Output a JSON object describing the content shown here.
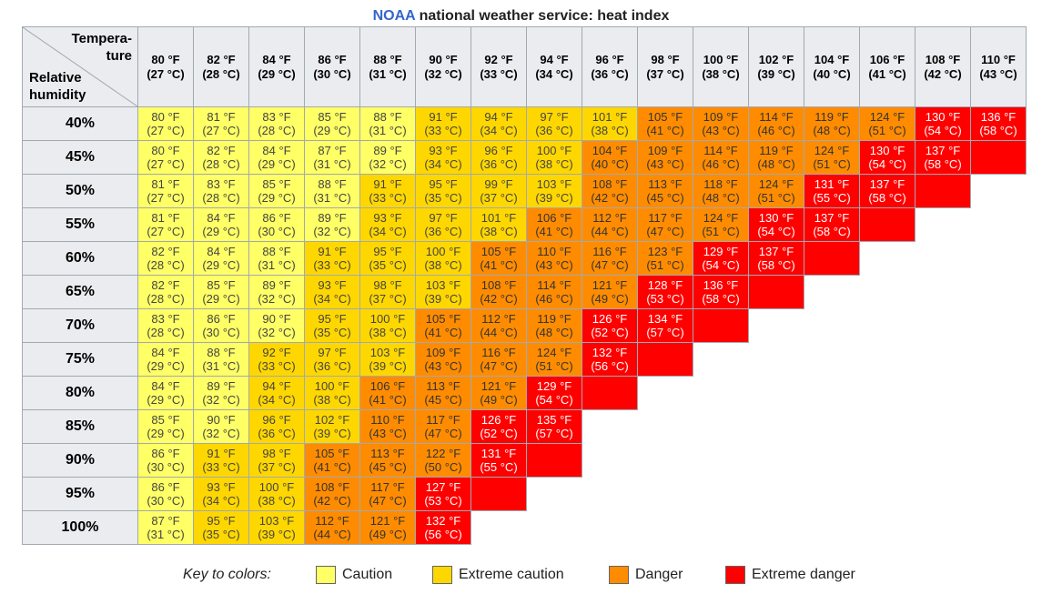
{
  "title": {
    "brand": "NOAA",
    "rest": "national weather service: heat index"
  },
  "corner": {
    "temp_line1": "Tempera-",
    "temp_line2": "ture",
    "hum_line1": "Relative",
    "hum_line2": "humidity"
  },
  "colors": {
    "header_bg": "#eaecf0",
    "caution": "#ffff66",
    "extreme_caution": "#ffd700",
    "danger": "#ff8c00",
    "extreme_danger": "#ff0000"
  },
  "temperatures": [
    {
      "f": "80 °F",
      "c": "(27 °C)"
    },
    {
      "f": "82 °F",
      "c": "(28 °C)"
    },
    {
      "f": "84 °F",
      "c": "(29 °C)"
    },
    {
      "f": "86 °F",
      "c": "(30 °C)"
    },
    {
      "f": "88 °F",
      "c": "(31 °C)"
    },
    {
      "f": "90 °F",
      "c": "(32 °C)"
    },
    {
      "f": "92 °F",
      "c": "(33 °C)"
    },
    {
      "f": "94 °F",
      "c": "(34 °C)"
    },
    {
      "f": "96 °F",
      "c": "(36 °C)"
    },
    {
      "f": "98 °F",
      "c": "(37 °C)"
    },
    {
      "f": "100 °F",
      "c": "(38 °C)"
    },
    {
      "f": "102 °F",
      "c": "(39 °C)"
    },
    {
      "f": "104 °F",
      "c": "(40 °C)"
    },
    {
      "f": "106 °F",
      "c": "(41 °C)"
    },
    {
      "f": "108 °F",
      "c": "(42 °C)"
    },
    {
      "f": "110 °F",
      "c": "(43 °C)"
    }
  ],
  "rows": [
    {
      "humidity": "40%",
      "cells": [
        {
          "f": "80 °F",
          "c": "(27 °C)",
          "cat": 0
        },
        {
          "f": "81 °F",
          "c": "(27 °C)",
          "cat": 0
        },
        {
          "f": "83 °F",
          "c": "(28 °C)",
          "cat": 0
        },
        {
          "f": "85 °F",
          "c": "(29 °C)",
          "cat": 0
        },
        {
          "f": "88 °F",
          "c": "(31 °C)",
          "cat": 0
        },
        {
          "f": "91 °F",
          "c": "(33 °C)",
          "cat": 1
        },
        {
          "f": "94 °F",
          "c": "(34 °C)",
          "cat": 1
        },
        {
          "f": "97 °F",
          "c": "(36 °C)",
          "cat": 1
        },
        {
          "f": "101 °F",
          "c": "(38 °C)",
          "cat": 1
        },
        {
          "f": "105 °F",
          "c": "(41 °C)",
          "cat": 2
        },
        {
          "f": "109 °F",
          "c": "(43 °C)",
          "cat": 2
        },
        {
          "f": "114 °F",
          "c": "(46 °C)",
          "cat": 2
        },
        {
          "f": "119 °F",
          "c": "(48 °C)",
          "cat": 2
        },
        {
          "f": "124 °F",
          "c": "(51 °C)",
          "cat": 2
        },
        {
          "f": "130 °F",
          "c": "(54 °C)",
          "cat": 3
        },
        {
          "f": "136 °F",
          "c": "(58 °C)",
          "cat": 3
        }
      ]
    },
    {
      "humidity": "45%",
      "cells": [
        {
          "f": "80 °F",
          "c": "(27 °C)",
          "cat": 0
        },
        {
          "f": "82 °F",
          "c": "(28 °C)",
          "cat": 0
        },
        {
          "f": "84 °F",
          "c": "(29 °C)",
          "cat": 0
        },
        {
          "f": "87 °F",
          "c": "(31 °C)",
          "cat": 0
        },
        {
          "f": "89 °F",
          "c": "(32 °C)",
          "cat": 0
        },
        {
          "f": "93 °F",
          "c": "(34 °C)",
          "cat": 1
        },
        {
          "f": "96 °F",
          "c": "(36 °C)",
          "cat": 1
        },
        {
          "f": "100 °F",
          "c": "(38 °C)",
          "cat": 1
        },
        {
          "f": "104 °F",
          "c": "(40 °C)",
          "cat": 2
        },
        {
          "f": "109 °F",
          "c": "(43 °C)",
          "cat": 2
        },
        {
          "f": "114 °F",
          "c": "(46 °C)",
          "cat": 2
        },
        {
          "f": "119 °F",
          "c": "(48 °C)",
          "cat": 2
        },
        {
          "f": "124 °F",
          "c": "(51 °C)",
          "cat": 2
        },
        {
          "f": "130 °F",
          "c": "(54 °C)",
          "cat": 3
        },
        {
          "f": "137 °F",
          "c": "(58 °C)",
          "cat": 3
        },
        {
          "f": "",
          "c": "",
          "cat": 3
        }
      ]
    },
    {
      "humidity": "50%",
      "cells": [
        {
          "f": "81 °F",
          "c": "(27 °C)",
          "cat": 0
        },
        {
          "f": "83 °F",
          "c": "(28 °C)",
          "cat": 0
        },
        {
          "f": "85 °F",
          "c": "(29 °C)",
          "cat": 0
        },
        {
          "f": "88 °F",
          "c": "(31 °C)",
          "cat": 0
        },
        {
          "f": "91 °F",
          "c": "(33 °C)",
          "cat": 1
        },
        {
          "f": "95 °F",
          "c": "(35 °C)",
          "cat": 1
        },
        {
          "f": "99 °F",
          "c": "(37 °C)",
          "cat": 1
        },
        {
          "f": "103 °F",
          "c": "(39 °C)",
          "cat": 1
        },
        {
          "f": "108 °F",
          "c": "(42 °C)",
          "cat": 2
        },
        {
          "f": "113 °F",
          "c": "(45 °C)",
          "cat": 2
        },
        {
          "f": "118 °F",
          "c": "(48 °C)",
          "cat": 2
        },
        {
          "f": "124 °F",
          "c": "(51 °C)",
          "cat": 2
        },
        {
          "f": "131 °F",
          "c": "(55 °C)",
          "cat": 3
        },
        {
          "f": "137 °F",
          "c": "(58 °C)",
          "cat": 3
        },
        {
          "f": "",
          "c": "",
          "cat": 3
        }
      ]
    },
    {
      "humidity": "55%",
      "cells": [
        {
          "f": "81 °F",
          "c": "(27 °C)",
          "cat": 0
        },
        {
          "f": "84 °F",
          "c": "(29 °C)",
          "cat": 0
        },
        {
          "f": "86 °F",
          "c": "(30 °C)",
          "cat": 0
        },
        {
          "f": "89 °F",
          "c": "(32 °C)",
          "cat": 0
        },
        {
          "f": "93 °F",
          "c": "(34 °C)",
          "cat": 1
        },
        {
          "f": "97 °F",
          "c": "(36 °C)",
          "cat": 1
        },
        {
          "f": "101 °F",
          "c": "(38 °C)",
          "cat": 1
        },
        {
          "f": "106 °F",
          "c": "(41 °C)",
          "cat": 2
        },
        {
          "f": "112 °F",
          "c": "(44 °C)",
          "cat": 2
        },
        {
          "f": "117 °F",
          "c": "(47 °C)",
          "cat": 2
        },
        {
          "f": "124 °F",
          "c": "(51 °C)",
          "cat": 2
        },
        {
          "f": "130 °F",
          "c": "(54 °C)",
          "cat": 3
        },
        {
          "f": "137 °F",
          "c": "(58 °C)",
          "cat": 3
        },
        {
          "f": "",
          "c": "",
          "cat": 3
        }
      ]
    },
    {
      "humidity": "60%",
      "cells": [
        {
          "f": "82 °F",
          "c": "(28 °C)",
          "cat": 0
        },
        {
          "f": "84 °F",
          "c": "(29 °C)",
          "cat": 0
        },
        {
          "f": "88 °F",
          "c": "(31 °C)",
          "cat": 0
        },
        {
          "f": "91 °F",
          "c": "(33 °C)",
          "cat": 1
        },
        {
          "f": "95 °F",
          "c": "(35 °C)",
          "cat": 1
        },
        {
          "f": "100 °F",
          "c": "(38 °C)",
          "cat": 1
        },
        {
          "f": "105 °F",
          "c": "(41 °C)",
          "cat": 2
        },
        {
          "f": "110 °F",
          "c": "(43 °C)",
          "cat": 2
        },
        {
          "f": "116 °F",
          "c": "(47 °C)",
          "cat": 2
        },
        {
          "f": "123 °F",
          "c": "(51 °C)",
          "cat": 2
        },
        {
          "f": "129 °F",
          "c": "(54 °C)",
          "cat": 3
        },
        {
          "f": "137 °F",
          "c": "(58 °C)",
          "cat": 3
        },
        {
          "f": "",
          "c": "",
          "cat": 3
        }
      ]
    },
    {
      "humidity": "65%",
      "cells": [
        {
          "f": "82 °F",
          "c": "(28 °C)",
          "cat": 0
        },
        {
          "f": "85 °F",
          "c": "(29 °C)",
          "cat": 0
        },
        {
          "f": "89 °F",
          "c": "(32 °C)",
          "cat": 0
        },
        {
          "f": "93 °F",
          "c": "(34 °C)",
          "cat": 1
        },
        {
          "f": "98 °F",
          "c": "(37 °C)",
          "cat": 1
        },
        {
          "f": "103 °F",
          "c": "(39 °C)",
          "cat": 1
        },
        {
          "f": "108 °F",
          "c": "(42 °C)",
          "cat": 2
        },
        {
          "f": "114 °F",
          "c": "(46 °C)",
          "cat": 2
        },
        {
          "f": "121 °F",
          "c": "(49 °C)",
          "cat": 2
        },
        {
          "f": "128 °F",
          "c": "(53 °C)",
          "cat": 3
        },
        {
          "f": "136 °F",
          "c": "(58 °C)",
          "cat": 3
        },
        {
          "f": "",
          "c": "",
          "cat": 3
        }
      ]
    },
    {
      "humidity": "70%",
      "cells": [
        {
          "f": "83 °F",
          "c": "(28 °C)",
          "cat": 0
        },
        {
          "f": "86 °F",
          "c": "(30 °C)",
          "cat": 0
        },
        {
          "f": "90 °F",
          "c": "(32 °C)",
          "cat": 0
        },
        {
          "f": "95 °F",
          "c": "(35 °C)",
          "cat": 1
        },
        {
          "f": "100 °F",
          "c": "(38 °C)",
          "cat": 1
        },
        {
          "f": "105 °F",
          "c": "(41 °C)",
          "cat": 2
        },
        {
          "f": "112 °F",
          "c": "(44 °C)",
          "cat": 2
        },
        {
          "f": "119 °F",
          "c": "(48 °C)",
          "cat": 2
        },
        {
          "f": "126 °F",
          "c": "(52 °C)",
          "cat": 3
        },
        {
          "f": "134 °F",
          "c": "(57 °C)",
          "cat": 3
        },
        {
          "f": "",
          "c": "",
          "cat": 3
        }
      ]
    },
    {
      "humidity": "75%",
      "cells": [
        {
          "f": "84 °F",
          "c": "(29 °C)",
          "cat": 0
        },
        {
          "f": "88 °F",
          "c": "(31 °C)",
          "cat": 0
        },
        {
          "f": "92 °F",
          "c": "(33 °C)",
          "cat": 1
        },
        {
          "f": "97 °F",
          "c": "(36 °C)",
          "cat": 1
        },
        {
          "f": "103 °F",
          "c": "(39 °C)",
          "cat": 1
        },
        {
          "f": "109 °F",
          "c": "(43 °C)",
          "cat": 2
        },
        {
          "f": "116 °F",
          "c": "(47 °C)",
          "cat": 2
        },
        {
          "f": "124 °F",
          "c": "(51 °C)",
          "cat": 2
        },
        {
          "f": "132 °F",
          "c": "(56 °C)",
          "cat": 3
        },
        {
          "f": "",
          "c": "",
          "cat": 3
        }
      ]
    },
    {
      "humidity": "80%",
      "cells": [
        {
          "f": "84 °F",
          "c": "(29 °C)",
          "cat": 0
        },
        {
          "f": "89 °F",
          "c": "(32 °C)",
          "cat": 0
        },
        {
          "f": "94 °F",
          "c": "(34 °C)",
          "cat": 1
        },
        {
          "f": "100 °F",
          "c": "(38 °C)",
          "cat": 1
        },
        {
          "f": "106 °F",
          "c": "(41 °C)",
          "cat": 2
        },
        {
          "f": "113 °F",
          "c": "(45 °C)",
          "cat": 2
        },
        {
          "f": "121 °F",
          "c": "(49 °C)",
          "cat": 2
        },
        {
          "f": "129 °F",
          "c": "(54 °C)",
          "cat": 3
        },
        {
          "f": "",
          "c": "",
          "cat": 3
        }
      ]
    },
    {
      "humidity": "85%",
      "cells": [
        {
          "f": "85 °F",
          "c": "(29 °C)",
          "cat": 0
        },
        {
          "f": "90 °F",
          "c": "(32 °C)",
          "cat": 0
        },
        {
          "f": "96 °F",
          "c": "(36 °C)",
          "cat": 1
        },
        {
          "f": "102 °F",
          "c": "(39 °C)",
          "cat": 1
        },
        {
          "f": "110 °F",
          "c": "(43 °C)",
          "cat": 2
        },
        {
          "f": "117 °F",
          "c": "(47 °C)",
          "cat": 2
        },
        {
          "f": "126 °F",
          "c": "(52 °C)",
          "cat": 3
        },
        {
          "f": "135 °F",
          "c": "(57 °C)",
          "cat": 3
        }
      ]
    },
    {
      "humidity": "90%",
      "cells": [
        {
          "f": "86 °F",
          "c": "(30 °C)",
          "cat": 0
        },
        {
          "f": "91 °F",
          "c": "(33 °C)",
          "cat": 1
        },
        {
          "f": "98 °F",
          "c": "(37 °C)",
          "cat": 1
        },
        {
          "f": "105 °F",
          "c": "(41 °C)",
          "cat": 2
        },
        {
          "f": "113 °F",
          "c": "(45 °C)",
          "cat": 2
        },
        {
          "f": "122 °F",
          "c": "(50 °C)",
          "cat": 2
        },
        {
          "f": "131 °F",
          "c": "(55 °C)",
          "cat": 3
        },
        {
          "f": "",
          "c": "",
          "cat": 3
        }
      ]
    },
    {
      "humidity": "95%",
      "cells": [
        {
          "f": "86 °F",
          "c": "(30 °C)",
          "cat": 0
        },
        {
          "f": "93 °F",
          "c": "(34 °C)",
          "cat": 1
        },
        {
          "f": "100 °F",
          "c": "(38 °C)",
          "cat": 1
        },
        {
          "f": "108 °F",
          "c": "(42 °C)",
          "cat": 2
        },
        {
          "f": "117 °F",
          "c": "(47 °C)",
          "cat": 2
        },
        {
          "f": "127 °F",
          "c": "(53 °C)",
          "cat": 3
        },
        {
          "f": "",
          "c": "",
          "cat": 3
        }
      ]
    },
    {
      "humidity": "100%",
      "cells": [
        {
          "f": "87 °F",
          "c": "(31 °C)",
          "cat": 0
        },
        {
          "f": "95 °F",
          "c": "(35 °C)",
          "cat": 1
        },
        {
          "f": "103 °F",
          "c": "(39 °C)",
          "cat": 1
        },
        {
          "f": "112 °F",
          "c": "(44 °C)",
          "cat": 2
        },
        {
          "f": "121 °F",
          "c": "(49 °C)",
          "cat": 2
        },
        {
          "f": "132 °F",
          "c": "(56 °C)",
          "cat": 3
        }
      ]
    }
  ],
  "key": {
    "label": "Key to colors:",
    "items": [
      {
        "label": "Caution",
        "color": "#ffff66"
      },
      {
        "label": "Extreme caution",
        "color": "#ffd700"
      },
      {
        "label": "Danger",
        "color": "#ff8c00"
      },
      {
        "label": "Extreme danger",
        "color": "#ff0000"
      }
    ]
  }
}
